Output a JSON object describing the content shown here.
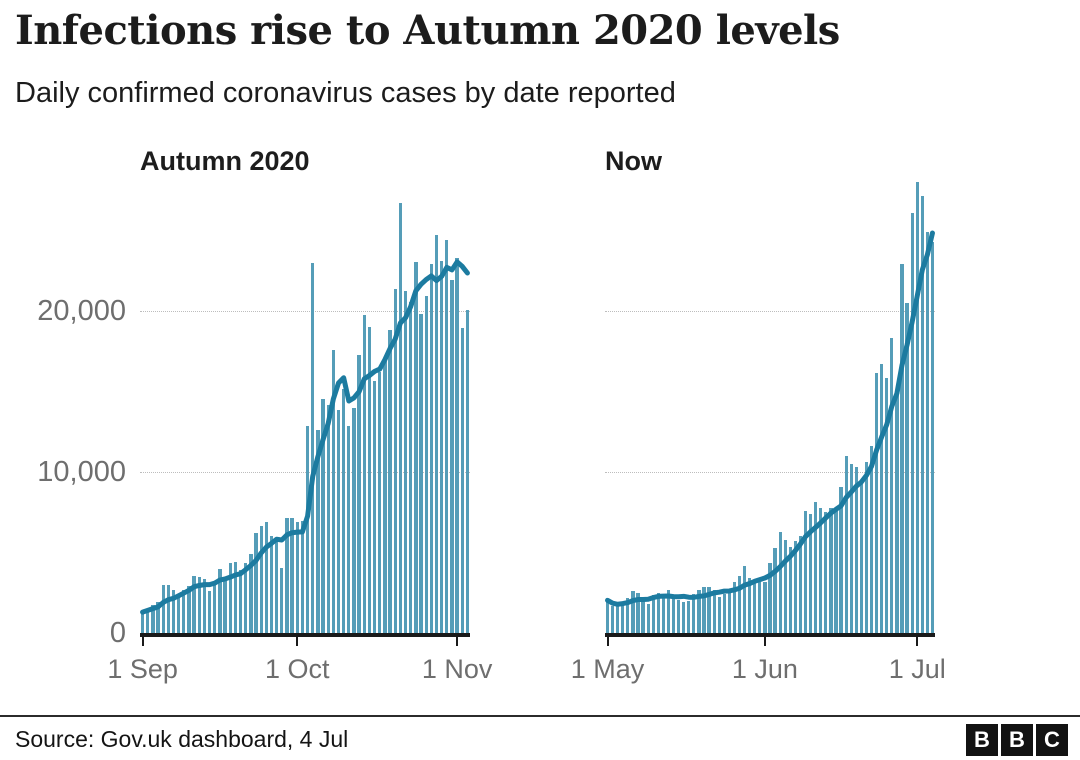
{
  "header": {
    "title": "Infections rise to Autumn 2020 levels",
    "subtitle": "Daily confirmed coronavirus cases by date reported"
  },
  "y_axis": {
    "shared": true,
    "max": 28100,
    "ticks": [
      {
        "label": "0",
        "value": 0
      },
      {
        "label": "10,000",
        "value": 10000
      },
      {
        "label": "20,000",
        "value": 20000
      }
    ]
  },
  "chart_data": [
    {
      "type": "bar",
      "title": "Autumn 2020",
      "line": {
        "name": "7-day average",
        "window": 7
      },
      "x_ticks": [
        {
          "label": "1 Sep",
          "day": 0
        },
        {
          "label": "1 Oct",
          "day": 30
        },
        {
          "label": "1 Nov",
          "day": 61
        }
      ],
      "values": [
        1295,
        1508,
        1735,
        1940,
        2988,
        2948,
        2648,
        2420,
        2659,
        2919,
        3539,
        3497,
        3330,
        2621,
        3105,
        3991,
        3395,
        4322,
        4422,
        3899,
        4368,
        4926,
        6178,
        6634,
        6874,
        6042,
        5693,
        4044,
        7143,
        7108,
        6914,
        6968,
        12872,
        22961,
        12594,
        14542,
        14162,
        17540,
        13864,
        15166,
        12871,
        13972,
        17234,
        19724,
        18980,
        15650,
        16171,
        16982,
        18804,
        21331,
        26688,
        21242,
        20530,
        23012,
        19790,
        20890,
        22885,
        24701,
        23065,
        24405,
        21915,
        23254,
        18950,
        20018
      ]
    },
    {
      "type": "bar",
      "title": "Now",
      "line": {
        "name": "7-day average",
        "window": 7
      },
      "x_ticks": [
        {
          "label": "1 May",
          "day": 0
        },
        {
          "label": "1 Jun",
          "day": 31
        },
        {
          "label": "1 Jul",
          "day": 61
        }
      ],
      "values": [
        2027,
        1671,
        1649,
        1946,
        2144,
        2613,
        2490,
        2047,
        1770,
        2357,
        2474,
        2284,
        2657,
        2193,
        2027,
        1926,
        1979,
        2412,
        2696,
        2874,
        2829,
        2694,
        2235,
        2439,
        2493,
        3180,
        3542,
        4182,
        3398,
        3240,
        3165,
        3165,
        4330,
        5274,
        6238,
        5765,
        5341,
        5683,
        6048,
        7540,
        7393,
        8125,
        7738,
        7490,
        7742,
        7673,
        9055,
        11007,
        10476,
        10321,
        9284,
        10633,
        11625,
        16135,
        16703,
        15810,
        18270,
        14876,
        22868,
        20479,
        26068,
        27989,
        27125,
        24885,
        24248
      ]
    }
  ],
  "footer": {
    "source": "Source: Gov.uk dashboard, 4 Jul",
    "logo_letters": [
      "B",
      "B",
      "C"
    ]
  },
  "colors": {
    "bar": "#559DB8",
    "line": "#1C7BA0",
    "grid": "#BDBDBD",
    "axis": "#1A1A1A",
    "tick_label": "#6E6E6E"
  }
}
